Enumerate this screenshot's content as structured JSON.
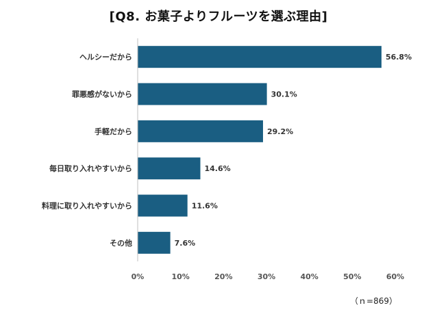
{
  "chart_data": {
    "type": "bar",
    "orientation": "horizontal",
    "title": "[Q8. お菓子よりフルーツを選ぶ理由]",
    "categories": [
      "ヘルシーだから",
      "罪悪感がないから",
      "手軽だから",
      "毎日取り入れやすいから",
      "料理に取り入れやすいから",
      "その他"
    ],
    "values": [
      56.8,
      30.1,
      29.2,
      14.6,
      11.6,
      7.6
    ],
    "value_labels": [
      "56.8%",
      "30.1%",
      "29.2%",
      "14.6%",
      "11.6%",
      "7.6%"
    ],
    "xlim": [
      0,
      60
    ],
    "xticks": [
      "0%",
      "10%",
      "20%",
      "30%",
      "40%",
      "50%",
      "60%"
    ],
    "bar_color": "#1a5e82",
    "grid": false,
    "note": "（ｎ=869）"
  }
}
